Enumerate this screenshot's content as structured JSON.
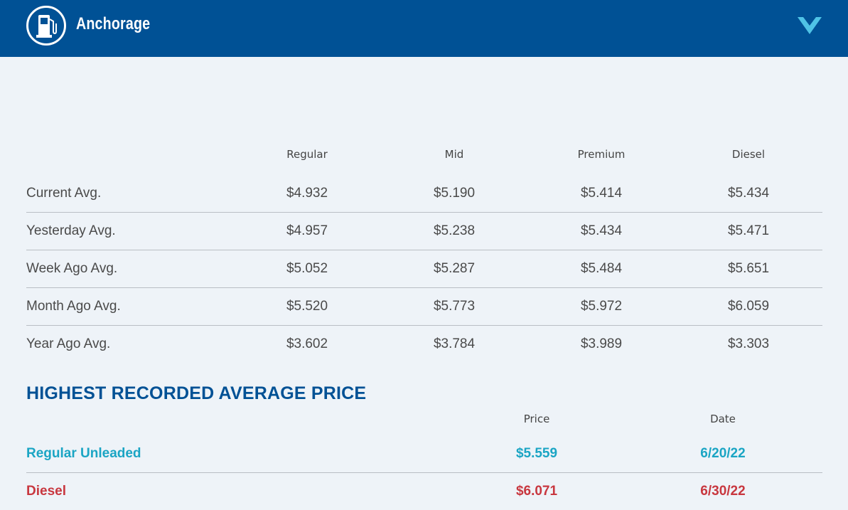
{
  "header": {
    "city": "Anchorage",
    "logo_icon": "gas-pump-icon",
    "toggle_icon": "chevron-down-icon",
    "brand_color": "#005195",
    "accent_color": "#4fc3e6"
  },
  "averages": {
    "columns": [
      "Regular",
      "Mid",
      "Premium",
      "Diesel"
    ],
    "rows": [
      {
        "label": "Current Avg.",
        "values": [
          "$4.932",
          "$5.190",
          "$5.414",
          "$5.434"
        ]
      },
      {
        "label": "Yesterday Avg.",
        "values": [
          "$4.957",
          "$5.238",
          "$5.434",
          "$5.471"
        ]
      },
      {
        "label": "Week Ago Avg.",
        "values": [
          "$5.052",
          "$5.287",
          "$5.484",
          "$5.651"
        ]
      },
      {
        "label": "Month Ago Avg.",
        "values": [
          "$5.520",
          "$5.773",
          "$5.972",
          "$6.059"
        ]
      },
      {
        "label": "Year Ago Avg.",
        "values": [
          "$3.602",
          "$3.784",
          "$3.989",
          "$3.303"
        ]
      }
    ]
  },
  "highest": {
    "title": "HIGHEST RECORDED AVERAGE PRICE",
    "columns": [
      "Price",
      "Date"
    ],
    "rows": [
      {
        "label": "Regular Unleaded",
        "price": "$5.559",
        "date": "6/20/22",
        "color": "#1ba5c4"
      },
      {
        "label": "Diesel",
        "price": "$6.071",
        "date": "6/30/22",
        "color": "#c8373f"
      }
    ]
  }
}
